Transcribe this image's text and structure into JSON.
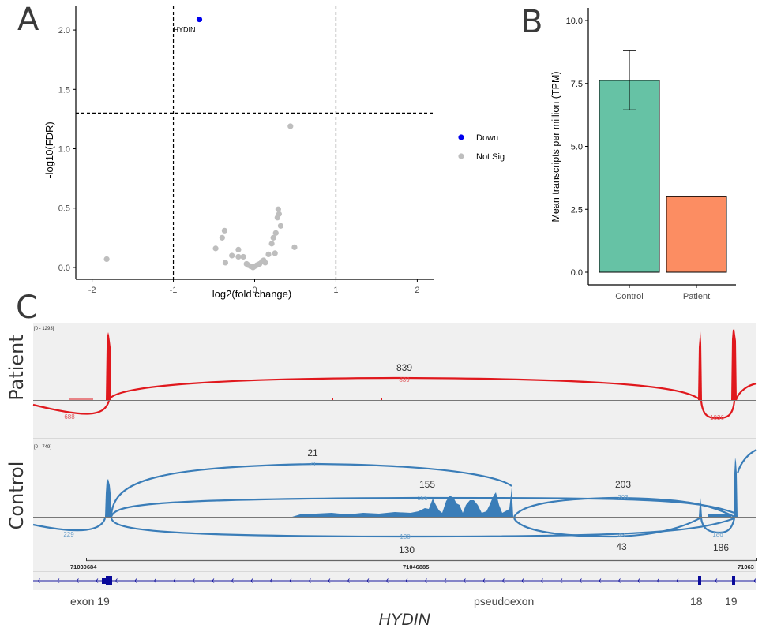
{
  "panels": {
    "A": "A",
    "B": "B",
    "C": "C"
  },
  "chart_data": [
    {
      "id": "volcano",
      "type": "scatter",
      "title": "",
      "xlabel": "log2(fold change)",
      "ylabel": "-log10(FDR)",
      "xlim": [
        -2.2,
        2.2
      ],
      "ylim": [
        -0.1,
        2.2
      ],
      "xticks": [
        -2,
        -1,
        0,
        1,
        2
      ],
      "xtick_labels": [
        "-2",
        "-1",
        "0",
        "1",
        "2"
      ],
      "yticks": [
        0.0,
        0.5,
        1.0,
        1.5,
        2.0
      ],
      "ytick_labels": [
        "0.0",
        "0.5",
        "1.0",
        "1.5",
        "2.0"
      ],
      "grid": false,
      "thresholds": {
        "fc_lines": [
          -1,
          1
        ],
        "fdr_line": 1.3
      },
      "legend": {
        "position": "right",
        "entries": [
          {
            "label": "Down",
            "color": "#0000ee"
          },
          {
            "label": "Not Sig",
            "color": "#bebebe"
          }
        ]
      },
      "series": [
        {
          "name": "Down",
          "color": "#0000ee",
          "points": [
            {
              "x": -0.68,
              "y": 2.09,
              "label": "HYDIN"
            }
          ]
        },
        {
          "name": "Not Sig",
          "color": "#bebebe",
          "points": [
            {
              "x": -1.82,
              "y": 0.07
            },
            {
              "x": 0.44,
              "y": 1.19
            },
            {
              "x": 0.29,
              "y": 0.49
            },
            {
              "x": 0.3,
              "y": 0.45
            },
            {
              "x": 0.28,
              "y": 0.42
            },
            {
              "x": 0.32,
              "y": 0.35
            },
            {
              "x": 0.26,
              "y": 0.29
            },
            {
              "x": 0.23,
              "y": 0.25
            },
            {
              "x": 0.21,
              "y": 0.2
            },
            {
              "x": 0.49,
              "y": 0.17
            },
            {
              "x": -0.37,
              "y": 0.31
            },
            {
              "x": -0.4,
              "y": 0.25
            },
            {
              "x": -0.48,
              "y": 0.16
            },
            {
              "x": -0.2,
              "y": 0.15
            },
            {
              "x": -0.28,
              "y": 0.1
            },
            {
              "x": -0.2,
              "y": 0.09
            },
            {
              "x": -0.14,
              "y": 0.09
            },
            {
              "x": -0.36,
              "y": 0.04
            },
            {
              "x": 0.17,
              "y": 0.11
            },
            {
              "x": 0.25,
              "y": 0.12
            },
            {
              "x": 0.11,
              "y": 0.06
            },
            {
              "x": 0.13,
              "y": 0.04
            },
            {
              "x": 0.09,
              "y": 0.05
            },
            {
              "x": 0.06,
              "y": 0.03
            },
            {
              "x": 0.03,
              "y": 0.02
            },
            {
              "x": 0.0,
              "y": 0.01
            },
            {
              "x": -0.02,
              "y": 0.0
            },
            {
              "x": -0.05,
              "y": 0.01
            },
            {
              "x": -0.08,
              "y": 0.02
            },
            {
              "x": -0.1,
              "y": 0.03
            }
          ]
        }
      ]
    },
    {
      "id": "tpm_bar",
      "type": "bar",
      "title": "",
      "xlabel": "",
      "ylabel": "Mean transcripts per million (TPM)",
      "categories": [
        "Control",
        "Patient"
      ],
      "values": [
        7.62,
        3.0
      ],
      "error": [
        {
          "low": 6.45,
          "high": 8.8
        },
        null
      ],
      "colors": [
        "#66c2a5",
        "#fc8d62"
      ],
      "ylim": [
        0,
        10.5
      ],
      "yticks": [
        0.0,
        2.5,
        5.0,
        7.5,
        10.0
      ],
      "ytick_labels": [
        "0.0",
        "2.5",
        "5.0",
        "7.5",
        "10.0"
      ],
      "grid": false
    },
    {
      "id": "sashimi",
      "type": "area",
      "gene": "HYDIN",
      "coordinates": [
        "71030684",
        "71046885",
        "71063"
      ],
      "tracks": [
        {
          "name": "Patient",
          "range_label": "[0 - 1293]",
          "color": "#e0181d",
          "junctions": [
            {
              "count": 688,
              "side": "below",
              "annotation": ""
            },
            {
              "count": 839,
              "side": "above",
              "annotation": "839"
            },
            {
              "count": 1036,
              "side": "below",
              "annotation": ""
            }
          ]
        },
        {
          "name": "Control",
          "range_label": "[0 - 749]",
          "color": "#3a7db8",
          "junctions": [
            {
              "count": 229,
              "side": "below",
              "annotation": ""
            },
            {
              "count": 21,
              "side": "above",
              "annotation": "21"
            },
            {
              "count": 155,
              "side": "above",
              "annotation": "155"
            },
            {
              "count": 203,
              "side": "above",
              "annotation": "203"
            },
            {
              "count": 130,
              "side": "below",
              "annotation": "130"
            },
            {
              "count": 43,
              "side": "below",
              "annotation": "43"
            },
            {
              "count": 186,
              "side": "below",
              "annotation": "186"
            }
          ]
        }
      ],
      "exon_labels": [
        "exon 19",
        "pseudoexon",
        "18",
        "19"
      ]
    }
  ]
}
